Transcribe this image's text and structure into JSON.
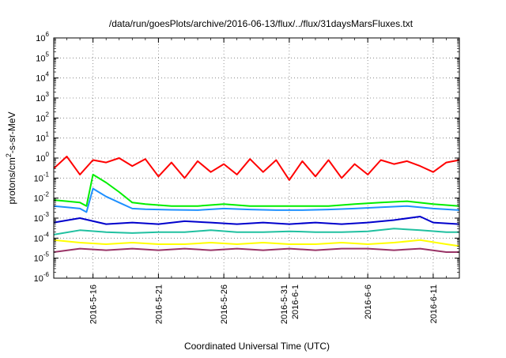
{
  "chart_data": {
    "type": "line",
    "title": "/data/run/goesPlots/archive/2016-06-13/flux/../flux/31daysMarsFluxes.txt",
    "xlabel": "Coordinated Universal Time (UTC)",
    "ylabel": "protons/cm2-s-sr-MeV",
    "ylabel_parts": {
      "pre": "protons/cm",
      "sup": "2",
      "post": "-s-sr-MeV"
    },
    "yscale": "log",
    "ylim": [
      1e-06,
      1000000.0
    ],
    "xlim": [
      "2016-05-13",
      "2016-06-13"
    ],
    "grid": true,
    "y_ticks": [
      {
        "value": 1e-06,
        "base": "10",
        "exp": "-6"
      },
      {
        "value": 1e-05,
        "base": "10",
        "exp": "-5"
      },
      {
        "value": 0.0001,
        "base": "10",
        "exp": "-4"
      },
      {
        "value": 0.001,
        "base": "10",
        "exp": "-3"
      },
      {
        "value": 0.01,
        "base": "10",
        "exp": "-2"
      },
      {
        "value": 0.1,
        "base": "10",
        "exp": "-1"
      },
      {
        "value": 1.0,
        "base": "10",
        "exp": "0"
      },
      {
        "value": 10.0,
        "base": "10",
        "exp": "1"
      },
      {
        "value": 100.0,
        "base": "10",
        "exp": "2"
      },
      {
        "value": 1000.0,
        "base": "10",
        "exp": "3"
      },
      {
        "value": 10000.0,
        "base": "10",
        "exp": "4"
      },
      {
        "value": 100000.0,
        "base": "10",
        "exp": "5"
      },
      {
        "value": 1000000.0,
        "base": "10",
        "exp": "6"
      }
    ],
    "x_ticks": [
      {
        "date": "2016-05-16",
        "lines": [
          "2016-5-16"
        ]
      },
      {
        "date": "2016-05-21",
        "lines": [
          "2016-5-21"
        ]
      },
      {
        "date": "2016-05-26",
        "lines": [
          "2016-5-26"
        ]
      },
      {
        "date": "2016-05-31",
        "lines": [
          "2016-5-31",
          "2016-6-1"
        ]
      },
      {
        "date": "2016-06-06",
        "lines": [
          "2016-6-6"
        ]
      },
      {
        "date": "2016-06-11",
        "lines": [
          "2016-6-11"
        ]
      }
    ],
    "series": [
      {
        "color": "#ff0000",
        "x": [
          "2016-05-13",
          "2016-05-14",
          "2016-05-15",
          "2016-05-16",
          "2016-05-17",
          "2016-05-18",
          "2016-05-19",
          "2016-05-20",
          "2016-05-21",
          "2016-05-22",
          "2016-05-23",
          "2016-05-24",
          "2016-05-25",
          "2016-05-26",
          "2016-05-27",
          "2016-05-28",
          "2016-05-29",
          "2016-05-30",
          "2016-05-31",
          "2016-06-01",
          "2016-06-02",
          "2016-06-03",
          "2016-06-04",
          "2016-06-05",
          "2016-06-06",
          "2016-06-07",
          "2016-06-08",
          "2016-06-09",
          "2016-06-10",
          "2016-06-11",
          "2016-06-12",
          "2016-06-13"
        ],
        "y": [
          0.3,
          1.2,
          0.15,
          0.8,
          0.6,
          1.0,
          0.4,
          0.9,
          0.12,
          0.6,
          0.1,
          0.7,
          0.2,
          0.5,
          0.15,
          0.9,
          0.2,
          0.8,
          0.08,
          0.7,
          0.12,
          0.8,
          0.1,
          0.5,
          0.15,
          0.8,
          0.5,
          0.7,
          0.4,
          0.2,
          0.6,
          0.8
        ]
      },
      {
        "color": "#00ee00",
        "x": [
          "2016-05-13",
          "2016-05-14",
          "2016-05-15",
          "2016-05-15T12:00",
          "2016-05-16",
          "2016-05-17",
          "2016-05-18",
          "2016-05-19",
          "2016-05-20",
          "2016-05-22",
          "2016-05-24",
          "2016-05-26",
          "2016-05-28",
          "2016-05-30",
          "2016-06-01",
          "2016-06-03",
          "2016-06-05",
          "2016-06-07",
          "2016-06-09",
          "2016-06-11",
          "2016-06-13"
        ],
        "y": [
          0.008,
          0.007,
          0.006,
          0.004,
          0.15,
          0.06,
          0.02,
          0.006,
          0.005,
          0.004,
          0.004,
          0.005,
          0.004,
          0.004,
          0.004,
          0.004,
          0.005,
          0.006,
          0.007,
          0.005,
          0.004
        ]
      },
      {
        "color": "#1e90ff",
        "x": [
          "2016-05-13",
          "2016-05-14",
          "2016-05-15",
          "2016-05-15T12:00",
          "2016-05-16",
          "2016-05-17",
          "2016-05-18",
          "2016-05-19",
          "2016-05-20",
          "2016-05-22",
          "2016-05-24",
          "2016-05-26",
          "2016-05-28",
          "2016-05-30",
          "2016-06-01",
          "2016-06-03",
          "2016-06-05",
          "2016-06-07",
          "2016-06-09",
          "2016-06-11",
          "2016-06-13"
        ],
        "y": [
          0.004,
          0.0035,
          0.003,
          0.002,
          0.03,
          0.012,
          0.006,
          0.003,
          0.0028,
          0.0026,
          0.0025,
          0.003,
          0.0027,
          0.0025,
          0.0025,
          0.0027,
          0.003,
          0.0035,
          0.004,
          0.003,
          0.0025
        ]
      },
      {
        "color": "#0000cc",
        "x": [
          "2016-05-13",
          "2016-05-15",
          "2016-05-17",
          "2016-05-19",
          "2016-05-21",
          "2016-05-23",
          "2016-05-25",
          "2016-05-27",
          "2016-05-29",
          "2016-05-31",
          "2016-06-02",
          "2016-06-04",
          "2016-06-06",
          "2016-06-08",
          "2016-06-10",
          "2016-06-11",
          "2016-06-13"
        ],
        "y": [
          0.0006,
          0.001,
          0.0005,
          0.0006,
          0.0005,
          0.0007,
          0.0006,
          0.0005,
          0.0006,
          0.0005,
          0.0006,
          0.0005,
          0.0006,
          0.0008,
          0.0012,
          0.0006,
          0.0005
        ]
      },
      {
        "color": "#20c0a0",
        "x": [
          "2016-05-13",
          "2016-05-15",
          "2016-05-17",
          "2016-05-19",
          "2016-05-21",
          "2016-05-23",
          "2016-05-25",
          "2016-05-27",
          "2016-05-29",
          "2016-05-31",
          "2016-06-02",
          "2016-06-04",
          "2016-06-06",
          "2016-06-08",
          "2016-06-10",
          "2016-06-12",
          "2016-06-13"
        ],
        "y": [
          0.00015,
          0.00025,
          0.0002,
          0.00018,
          0.0002,
          0.0002,
          0.00025,
          0.0002,
          0.0002,
          0.00022,
          0.0002,
          0.0002,
          0.00022,
          0.0003,
          0.00025,
          0.0002,
          0.0002
        ]
      },
      {
        "color": "#ffff00",
        "x": [
          "2016-05-13",
          "2016-05-15",
          "2016-05-17",
          "2016-05-19",
          "2016-05-21",
          "2016-05-23",
          "2016-05-25",
          "2016-05-27",
          "2016-05-29",
          "2016-05-31",
          "2016-06-02",
          "2016-06-04",
          "2016-06-06",
          "2016-06-08",
          "2016-06-10",
          "2016-06-12",
          "2016-06-13"
        ],
        "y": [
          8e-05,
          6e-05,
          5e-05,
          6e-05,
          5e-05,
          5e-05,
          6e-05,
          5e-05,
          6e-05,
          5e-05,
          5e-05,
          6e-05,
          5e-05,
          6e-05,
          8e-05,
          5e-05,
          4e-05
        ]
      },
      {
        "color": "#993366",
        "x": [
          "2016-05-13",
          "2016-05-15",
          "2016-05-17",
          "2016-05-19",
          "2016-05-21",
          "2016-05-23",
          "2016-05-25",
          "2016-05-27",
          "2016-05-29",
          "2016-05-31",
          "2016-06-02",
          "2016-06-04",
          "2016-06-06",
          "2016-06-08",
          "2016-06-10",
          "2016-06-12",
          "2016-06-13"
        ],
        "y": [
          2e-05,
          3e-05,
          2.5e-05,
          3e-05,
          2.5e-05,
          3e-05,
          2.5e-05,
          3e-05,
          2.5e-05,
          3e-05,
          2.5e-05,
          3e-05,
          3e-05,
          2.5e-05,
          3e-05,
          2e-05,
          2e-05
        ]
      }
    ]
  }
}
